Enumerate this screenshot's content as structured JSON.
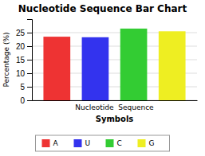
{
  "chart_data": {
    "type": "bar",
    "title": "Nucleotide Sequence Bar Chart",
    "categories": [
      "A",
      "U",
      "C",
      "G"
    ],
    "values": [
      23.5,
      23.3,
      26.5,
      25.5
    ],
    "colors": [
      "#ee3333",
      "#3333ee",
      "#33cc33",
      "#eeee22"
    ],
    "ylabel": "Percentage (%)",
    "xlabel": "Symbols",
    "annotations": [
      "Nucleotide  Sequence"
    ],
    "ylim": [
      0,
      30
    ],
    "yticks": [
      0,
      5,
      10,
      15,
      20,
      25
    ],
    "grid": true,
    "legend": "bottom",
    "tick_labels": "y"
  }
}
